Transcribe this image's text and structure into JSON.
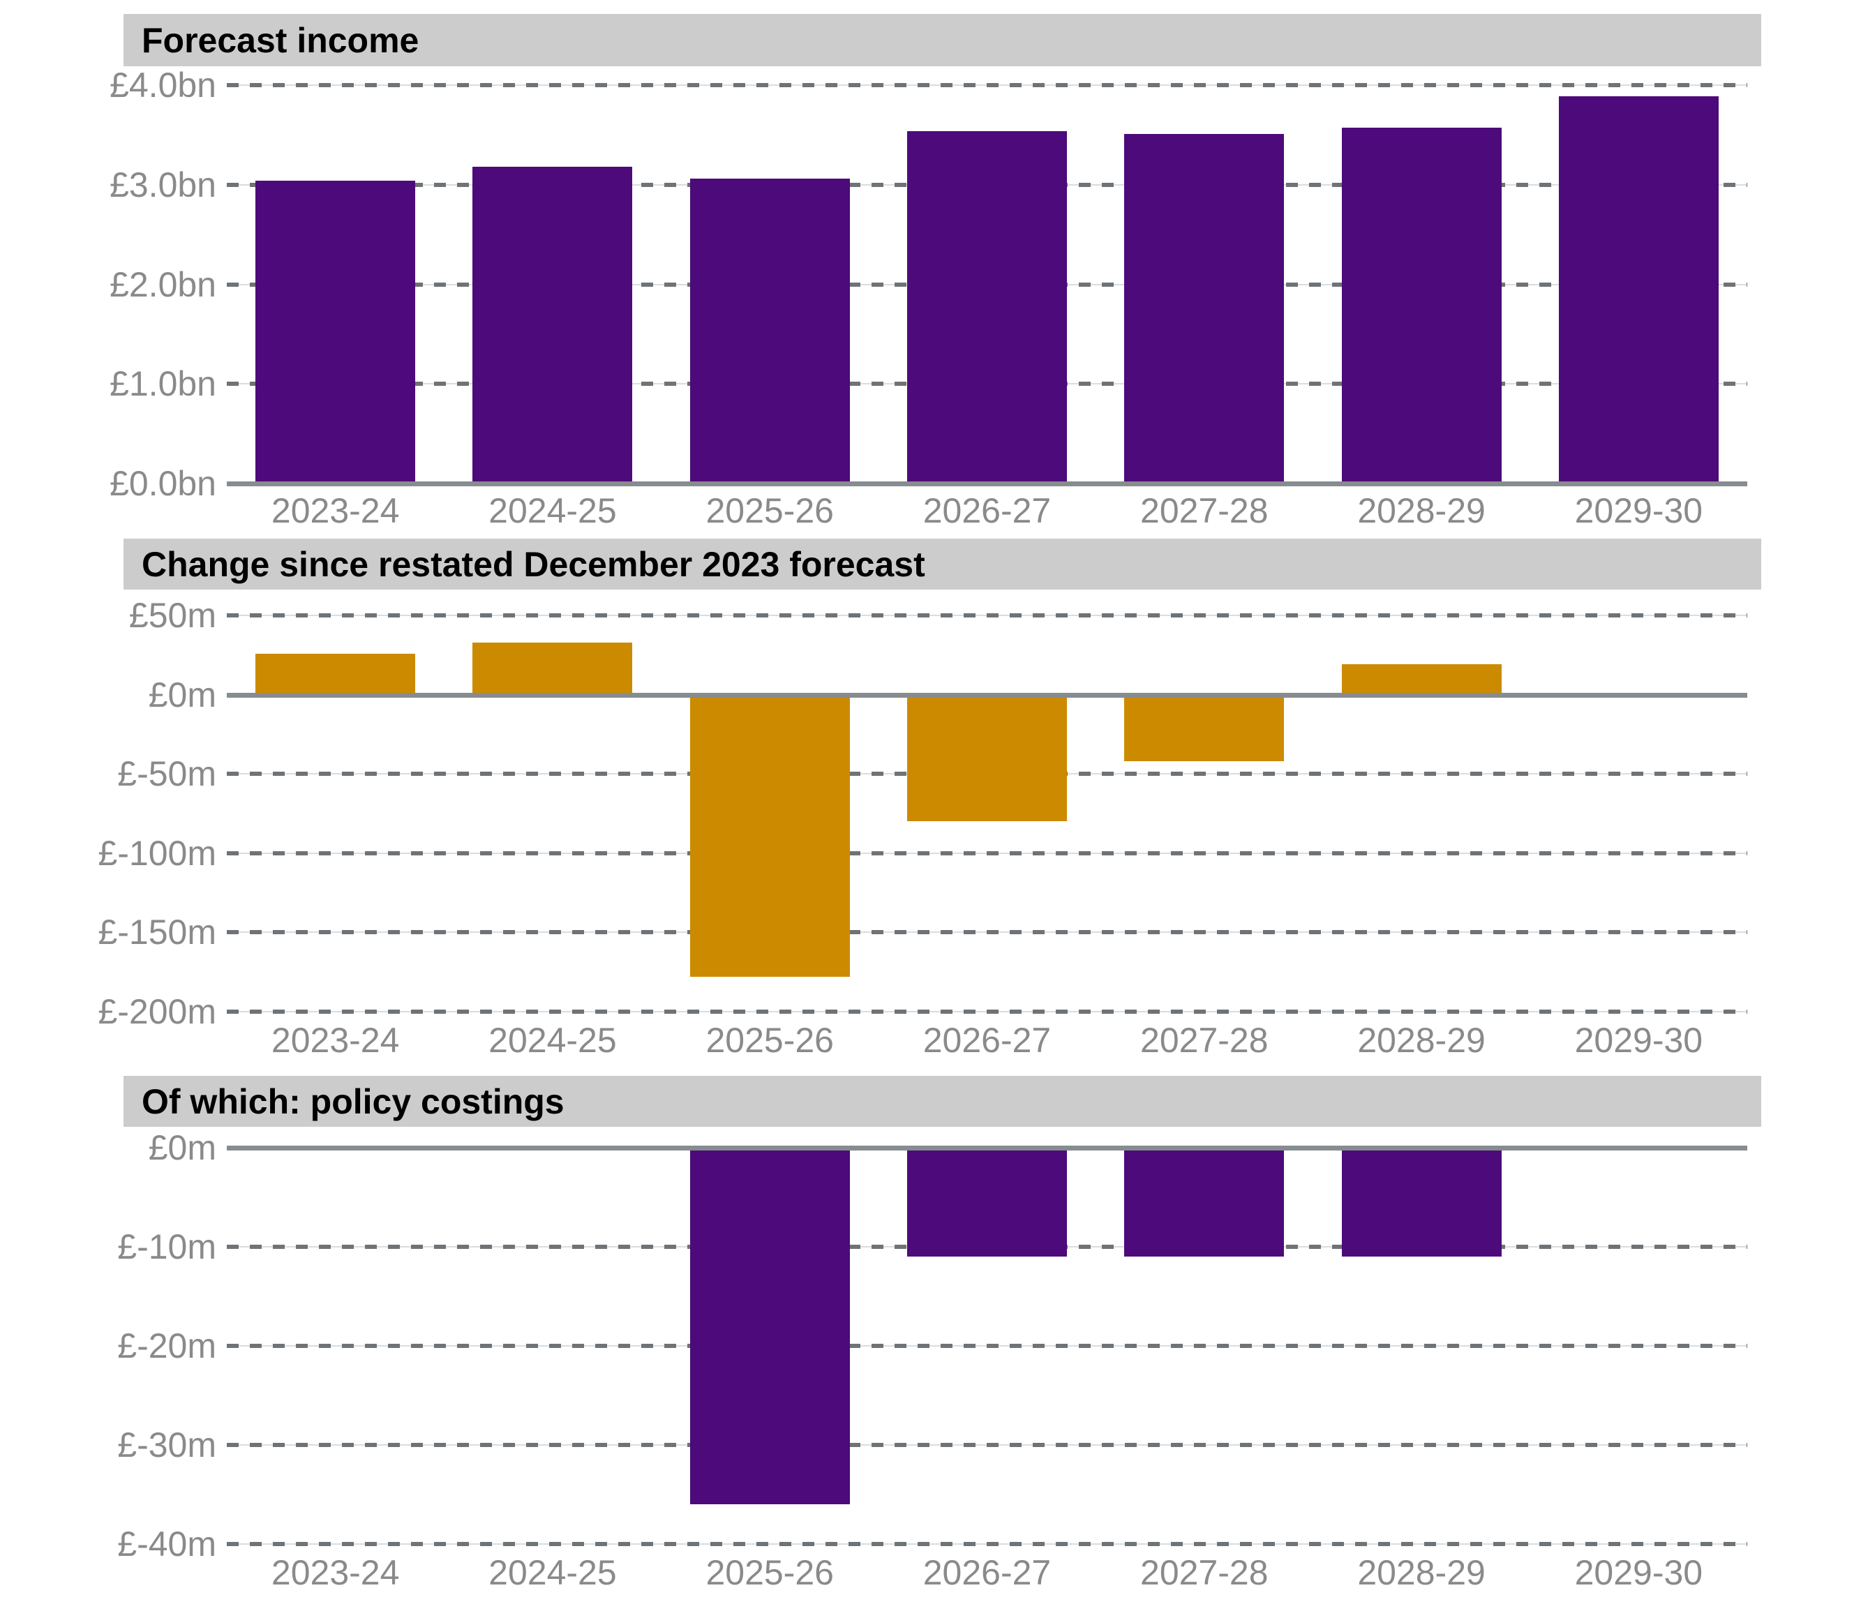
{
  "colors": {
    "purple": "#4d0a7a",
    "orange": "#cc8a00",
    "banner_background": "#cccccc",
    "banner_text": "#000000",
    "gridline": "#6e7377",
    "zero_line": "#878c8f",
    "tick_label": "#8a8a8a",
    "background": "#ffffff"
  },
  "chart_data": [
    {
      "type": "bar",
      "title": "Forecast income",
      "unit": "£bn",
      "categories": [
        "2023-24",
        "2024-25",
        "2025-26",
        "2026-27",
        "2027-28",
        "2028-29",
        "2029-30"
      ],
      "values": [
        3.04,
        3.18,
        3.06,
        3.54,
        3.51,
        3.57,
        3.89
      ],
      "bar_color": "#4d0a7a",
      "ylim": [
        0,
        4.0
      ],
      "ytick_values": [
        4,
        3,
        2,
        1,
        0
      ],
      "ytick_labels": [
        "£4.0bn",
        "£3.0bn",
        "£2.0bn",
        "£1.0bn",
        "£0.0bn"
      ],
      "grid": "dashed horizontal",
      "zero_line_value": 0,
      "legend": "none"
    },
    {
      "type": "bar",
      "title": "Change since restated December 2023 forecast",
      "unit": "£m",
      "categories": [
        "2023-24",
        "2024-25",
        "2025-26",
        "2026-27",
        "2027-28",
        "2028-29",
        "2029-30"
      ],
      "values": [
        26,
        33,
        -178,
        -80,
        -42,
        19,
        0
      ],
      "bar_color": "#cc8a00",
      "ylim": [
        -200,
        50
      ],
      "ytick_values": [
        50,
        0,
        -50,
        -100,
        -150,
        -200
      ],
      "ytick_labels": [
        "£50m",
        "£0m",
        "£-50m",
        "£-100m",
        "£-150m",
        "£-200m"
      ],
      "grid": "dashed horizontal",
      "zero_line_value": 0,
      "legend": "none"
    },
    {
      "type": "bar",
      "title": "Of which: policy costings",
      "unit": "£m",
      "categories": [
        "2023-24",
        "2024-25",
        "2025-26",
        "2026-27",
        "2027-28",
        "2028-29",
        "2029-30"
      ],
      "values": [
        0,
        0,
        -36,
        -11,
        -11,
        -11,
        0
      ],
      "bar_color": "#4d0a7a",
      "ylim": [
        -40,
        0
      ],
      "ytick_values": [
        0,
        -10,
        -20,
        -30,
        -40
      ],
      "ytick_labels": [
        "£0m",
        "£-10m",
        "£-20m",
        "£-30m",
        "£-40m"
      ],
      "grid": "dashed horizontal",
      "zero_line_value": 0,
      "legend": "none"
    }
  ]
}
